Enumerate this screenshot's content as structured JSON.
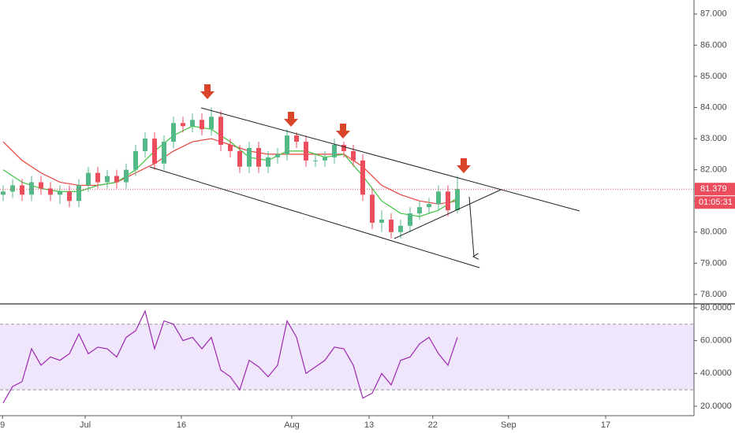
{
  "chart_data": [
    {
      "type": "candlestick",
      "x": [
        0.5,
        2,
        3.5,
        5,
        6.5,
        8,
        9.5,
        11,
        12.5,
        14,
        15.5,
        17,
        18.5,
        20,
        21.5,
        23,
        24.5,
        26,
        27.5,
        29,
        30.5,
        32,
        33.5,
        35,
        36.5,
        38,
        39.5,
        41,
        42.5,
        44,
        45.5,
        47,
        48.5,
        50,
        51.5,
        53,
        54.5,
        56,
        57.5,
        59,
        60.5,
        62,
        63.5,
        65,
        66.5,
        68,
        69.5,
        71,
        72.5
      ],
      "open": [
        81.2,
        81.3,
        81.5,
        81.2,
        81.6,
        81.4,
        81.2,
        81.3,
        81.0,
        81.5,
        81.9,
        81.6,
        81.8,
        81.6,
        82.0,
        82.6,
        83.0,
        82.2,
        82.9,
        83.5,
        83.4,
        83.6,
        83.3,
        83.7,
        82.8,
        82.6,
        82.1,
        82.7,
        82.1,
        82.4,
        82.5,
        83.1,
        82.9,
        82.3,
        82.3,
        82.4,
        82.8,
        82.6,
        82.3,
        81.2,
        80.3,
        80.4,
        80.0,
        80.2,
        80.6,
        80.8,
        80.9,
        81.3,
        80.7
      ],
      "high": [
        81.5,
        81.7,
        81.7,
        81.8,
        81.8,
        81.6,
        81.5,
        81.5,
        81.7,
        82.1,
        82.1,
        82.0,
        82.0,
        82.2,
        82.8,
        83.2,
        83.2,
        83.1,
        83.7,
        83.7,
        83.8,
        83.8,
        84.0,
        83.9,
        83.0,
        82.8,
        82.9,
        82.9,
        82.6,
        82.7,
        83.3,
        83.2,
        83.1,
        82.5,
        82.6,
        83.0,
        82.9,
        82.8,
        82.5,
        81.4,
        80.7,
        80.6,
        80.4,
        80.8,
        81.0,
        81.1,
        81.5,
        81.5,
        81.8
      ],
      "low": [
        81.0,
        81.1,
        81.0,
        81.0,
        81.2,
        81.0,
        80.9,
        80.8,
        80.8,
        81.3,
        81.4,
        81.4,
        81.4,
        81.4,
        81.8,
        82.4,
        82.0,
        82.0,
        82.7,
        83.2,
        83.2,
        83.1,
        83.1,
        82.6,
        82.4,
        81.9,
        81.9,
        81.9,
        81.9,
        82.2,
        82.3,
        82.7,
        82.1,
        82.1,
        82.1,
        82.2,
        82.4,
        82.1,
        81.0,
        80.1,
        80.0,
        79.8,
        79.8,
        80.0,
        80.4,
        80.6,
        80.7,
        80.5,
        80.6
      ],
      "close": [
        81.3,
        81.5,
        81.2,
        81.6,
        81.4,
        81.2,
        81.3,
        81.0,
        81.5,
        81.9,
        81.6,
        81.8,
        81.6,
        82.0,
        82.6,
        83.0,
        82.2,
        82.9,
        83.5,
        83.4,
        83.6,
        83.3,
        83.7,
        82.8,
        82.6,
        82.1,
        82.7,
        82.1,
        82.4,
        82.5,
        83.1,
        82.9,
        82.3,
        82.3,
        82.4,
        82.8,
        82.6,
        82.3,
        81.2,
        80.3,
        80.4,
        80.0,
        80.2,
        80.6,
        80.8,
        80.9,
        81.3,
        80.7,
        81.38
      ],
      "up_color": "#53b987",
      "down_color": "#eb4d5c",
      "overlays": [
        {
          "color": "#e8413a",
          "x": [
            0.5,
            3.5,
            6.5,
            9.5,
            12.5,
            15.5,
            18.5,
            21.5,
            24.5,
            27.5,
            30.5,
            33.5,
            36.5,
            39.5,
            42.5,
            45.5,
            48.5,
            51.5,
            54.5,
            57.5,
            60.5,
            63.5,
            66.5,
            69.5,
            72.5
          ],
          "values": [
            82.9,
            82.3,
            81.9,
            81.6,
            81.5,
            81.5,
            81.6,
            81.9,
            82.2,
            82.6,
            82.9,
            83.0,
            82.8,
            82.6,
            82.5,
            82.5,
            82.5,
            82.5,
            82.5,
            82.1,
            81.5,
            81.2,
            81.0,
            80.9,
            81.0
          ]
        },
        {
          "color": "#3cc43c",
          "x": [
            0.5,
            3.5,
            6.5,
            9.5,
            12.5,
            15.5,
            18.5,
            21.5,
            24.5,
            27.5,
            30.5,
            33.5,
            36.5,
            39.5,
            42.5,
            45.5,
            48.5,
            51.5,
            54.5,
            57.5,
            60.5,
            63.5,
            66.5,
            69.5,
            72.5
          ],
          "values": [
            82.0,
            81.6,
            81.4,
            81.3,
            81.3,
            81.5,
            81.6,
            82.0,
            82.6,
            83.1,
            83.4,
            83.3,
            82.9,
            82.4,
            82.3,
            82.6,
            82.6,
            82.4,
            82.5,
            81.8,
            81.0,
            80.6,
            80.5,
            80.7,
            81.1
          ]
        }
      ],
      "last_price": 81.379,
      "countdown": "01:05:31",
      "xlim": [
        0,
        110
      ],
      "ylim": [
        77.72,
        87.45
      ],
      "yticks": [
        {
          "value": 78,
          "label": "78.000"
        },
        {
          "value": 79,
          "label": "79.000"
        },
        {
          "value": 80,
          "label": "80.000"
        },
        {
          "value": 81,
          "label": "81.000"
        },
        {
          "value": 82,
          "label": "82.000"
        },
        {
          "value": 83,
          "label": "83.000"
        },
        {
          "value": 84,
          "label": "84.000"
        },
        {
          "value": 85,
          "label": "85.000"
        },
        {
          "value": 86,
          "label": "86.000"
        },
        {
          "value": 87,
          "label": "87.000"
        }
      ],
      "grid": false
    },
    {
      "type": "line",
      "color": "#9c27b0",
      "x": [
        0.5,
        2,
        3.5,
        5,
        6.5,
        8,
        9.5,
        11,
        12.5,
        14,
        15.5,
        17,
        18.5,
        20,
        21.5,
        23,
        24.5,
        26,
        27.5,
        29,
        30.5,
        32,
        33.5,
        35,
        36.5,
        38,
        39.5,
        41,
        42.5,
        44,
        45.5,
        47,
        48.5,
        50,
        51.5,
        53,
        54.5,
        56,
        57.5,
        59,
        60.5,
        62,
        63.5,
        65,
        66.5,
        68,
        69.5,
        71,
        72.5
      ],
      "values": [
        22,
        32,
        35,
        55,
        45,
        50,
        48,
        52,
        64,
        52,
        56,
        55,
        50,
        62,
        66,
        78,
        55,
        72,
        70,
        60,
        62,
        55,
        62,
        42,
        38,
        30,
        48,
        44,
        38,
        45,
        72,
        62,
        40,
        44,
        48,
        56,
        55,
        45,
        25,
        28,
        40,
        33,
        48,
        50,
        58,
        62,
        52,
        45,
        62
      ],
      "band": [
        30,
        70
      ],
      "band_color": "#e9dcfb",
      "xlim": [
        0,
        110
      ],
      "ylim": [
        15.7,
        81.4
      ],
      "yticks": [
        {
          "value": 20,
          "label": "20.0000"
        },
        {
          "value": 40,
          "label": "40.0000"
        },
        {
          "value": 60,
          "label": "60.0000"
        },
        {
          "value": 80,
          "label": "80.0000"
        }
      ],
      "xticks": [
        {
          "value": 0.4,
          "label": "9"
        },
        {
          "value": 13.5,
          "label": "Jul"
        },
        {
          "value": 28.75,
          "label": "16"
        },
        {
          "value": 46.25,
          "label": "Aug"
        },
        {
          "value": 58.5,
          "label": "13"
        },
        {
          "value": 68.6,
          "label": "22"
        },
        {
          "value": 80.6,
          "label": "Sep"
        },
        {
          "value": 96,
          "label": "17"
        }
      ],
      "grid": false
    }
  ]
}
